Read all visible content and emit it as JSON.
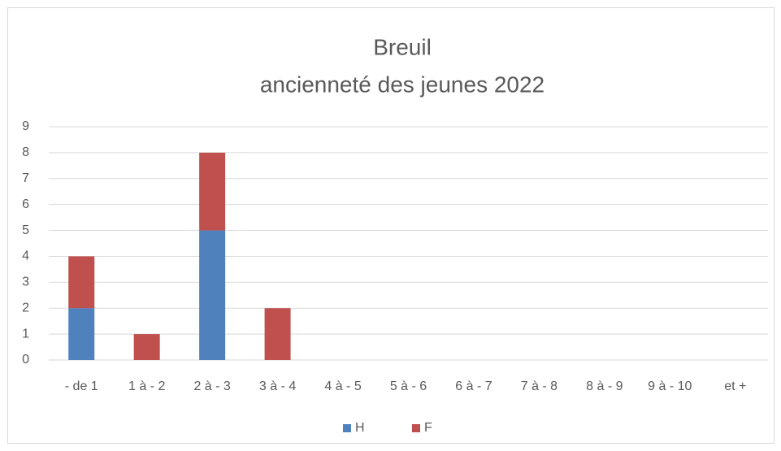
{
  "chart_data": {
    "type": "stacked_bar",
    "title": "Breuil",
    "subtitle": "ancienneté des jeunes  2022",
    "categories": [
      "- de 1",
      "1 à - 2",
      "2 à - 3",
      "3 à - 4",
      "4 à - 5",
      "5 à - 6",
      "6 à - 7",
      "7 à - 8",
      "8 à - 9",
      "9 à - 10",
      "et +"
    ],
    "series": [
      {
        "name": "H",
        "color": "#4f81bd",
        "values": [
          2,
          0,
          5,
          0,
          0,
          0,
          0,
          0,
          0,
          0,
          0
        ]
      },
      {
        "name": "F",
        "color": "#c0504d",
        "values": [
          2,
          1,
          3,
          2,
          0,
          0,
          0,
          0,
          0,
          0,
          0
        ]
      }
    ],
    "ylim": [
      0,
      9
    ],
    "yticks": [
      0,
      1,
      2,
      3,
      4,
      5,
      6,
      7,
      8,
      9
    ],
    "grid": true,
    "legend": "bottom"
  }
}
